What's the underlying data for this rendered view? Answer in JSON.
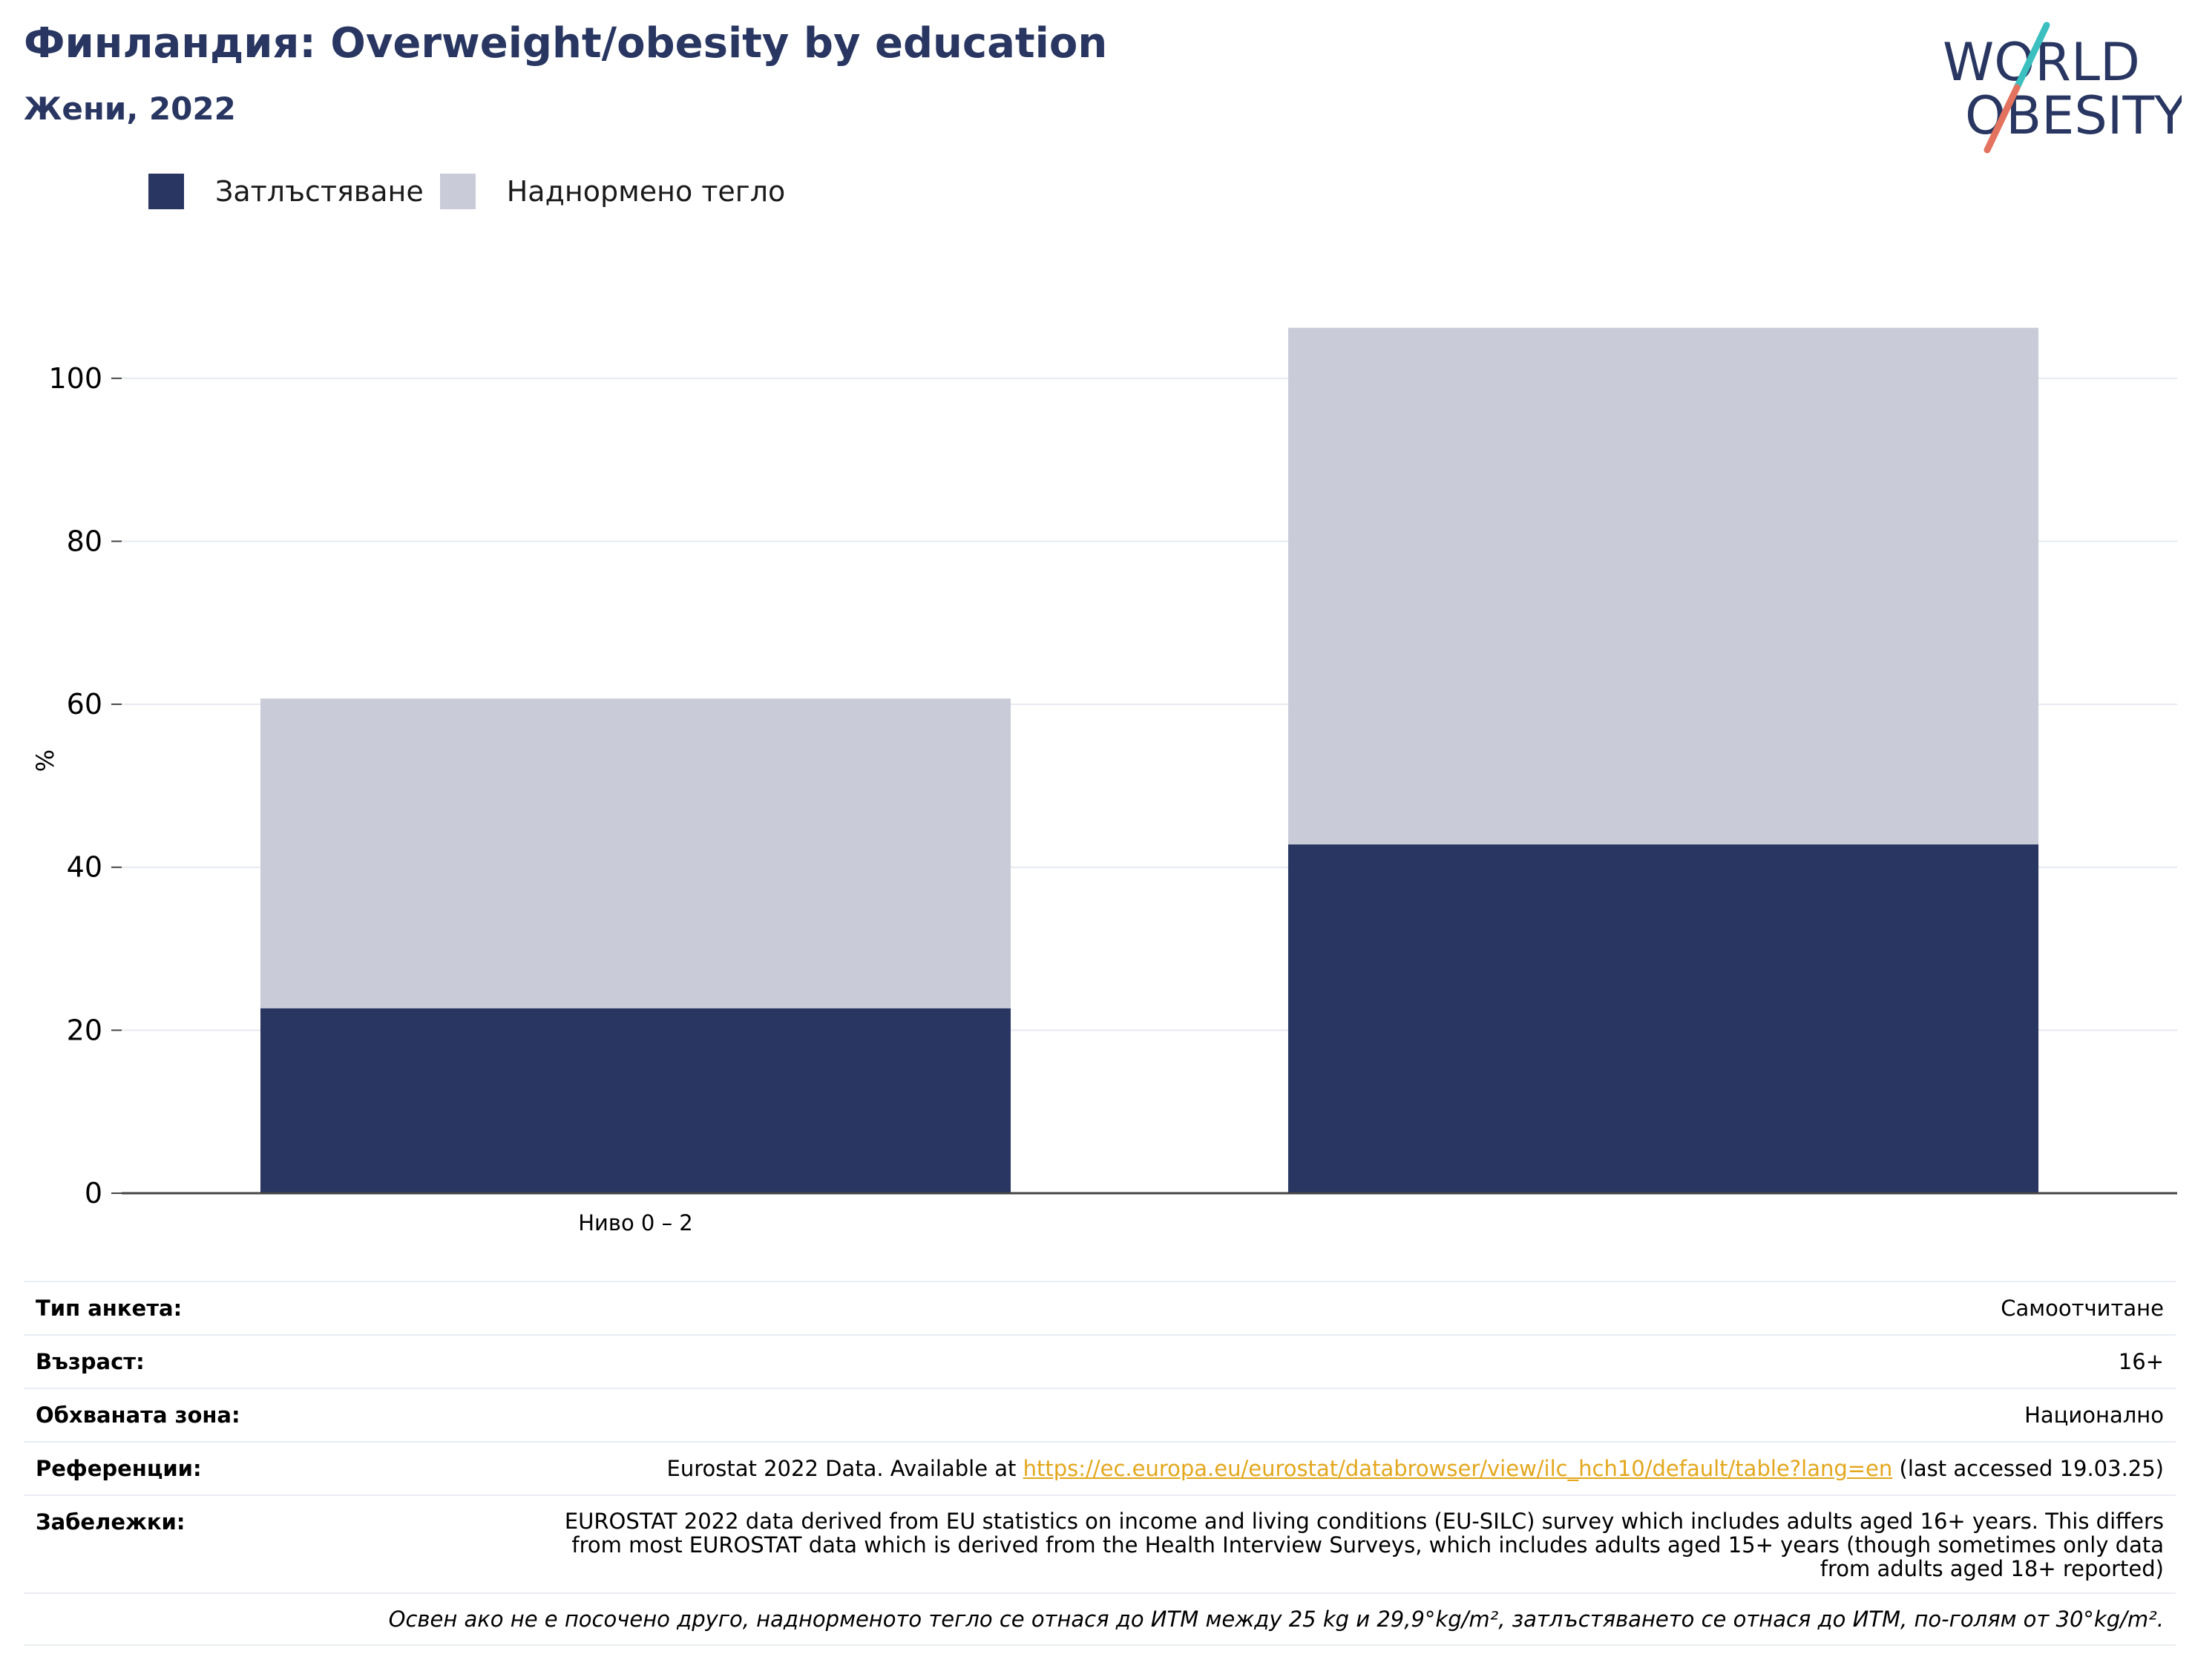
{
  "header": {
    "title": "Финландия: Overweight/obesity by education",
    "subtitle": "Жени, 2022"
  },
  "logo": {
    "line1": "WORLD",
    "line2": "OBESITY"
  },
  "colors": {
    "obesity": "#283661",
    "overweight": "#c9ccd8",
    "text_dark": "#283661",
    "link": "#e3a71c",
    "logo_teal": "#3bbfbf",
    "logo_coral": "#e3735e"
  },
  "legend": [
    {
      "label": "Затлъстяване",
      "color": "#283661"
    },
    {
      "label": "Наднормено тегло",
      "color": "#c9ccd8"
    }
  ],
  "chart_data": {
    "type": "bar",
    "stacked": true,
    "categories": [
      "Ниво 0 – 2",
      ""
    ],
    "series": [
      {
        "name": "Затлъстяване",
        "values": [
          22.7,
          42.8
        ]
      },
      {
        "name": "Наднормено тегло",
        "values": [
          38.0,
          63.4
        ]
      }
    ],
    "ylabel": "%",
    "ylim": [
      0,
      110
    ],
    "yticks": [
      0,
      20,
      40,
      60,
      80,
      100
    ],
    "grid": true,
    "legend_position": "top-left"
  },
  "info": {
    "survey_type_label": "Тип анкета:",
    "survey_type_value": "Самоотчитане",
    "age_label": "Възраст:",
    "age_value": "16+",
    "area_label": "Обхваната зона:",
    "area_value": "Национално",
    "references_label": "Референции:",
    "references_prefix": "Eurostat 2022 Data. Available at ",
    "references_link": "https://ec.europa.eu/eurostat/databrowser/view/ilc_hch10/default/table?lang=en",
    "references_suffix": " (last accessed 19.03.25)",
    "notes_label": "Забележки:",
    "notes_value": "EUROSTAT 2022 data derived from EU statistics on income and living conditions (EU-SILC) survey which includes adults aged 16+ years. This differs from most EUROSTAT data which is derived from the Health Interview Surveys, which includes adults aged 15+ years (though sometimes only data from adults aged 18+ reported)",
    "footnote": "Освен ако не е посочено друго, наднорменото тегло се отнася до ИТМ между 25 kg и 29,9°kg/m², затлъстяването се отнася до ИТМ, по-голям от 30°kg/m²."
  }
}
